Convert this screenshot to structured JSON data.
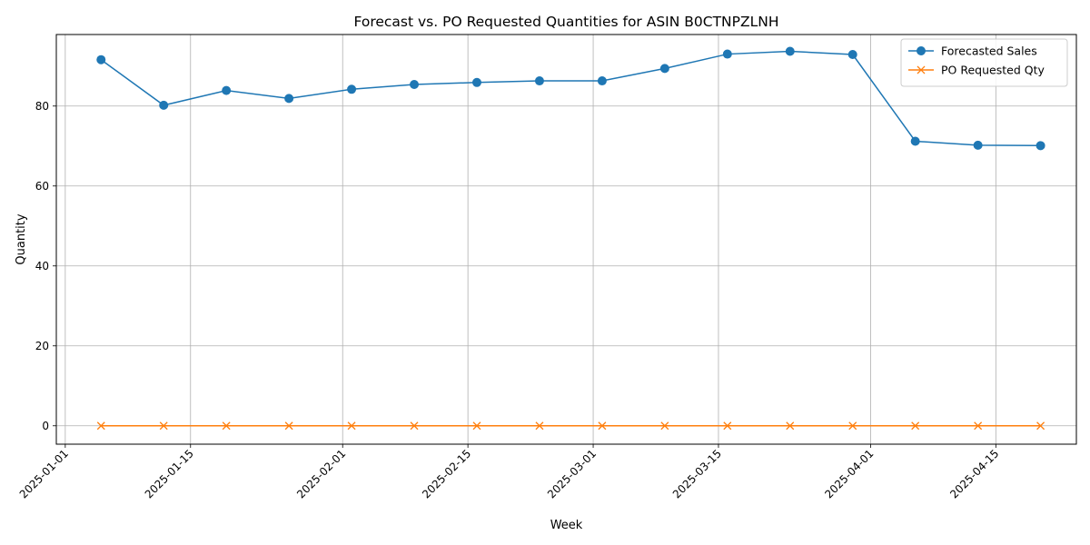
{
  "chart_data": {
    "type": "line",
    "title": "Forecast vs. PO Requested Quantities for ASIN B0CTNPZLNH",
    "xlabel": "Week",
    "ylabel": "Quantity",
    "x_axis_type": "date",
    "xlim": [
      "2024-12-31",
      "2025-04-24"
    ],
    "ylim": [
      -4.6,
      97.9
    ],
    "x_ticks": [
      "2025-01-01",
      "2025-01-15",
      "2025-02-01",
      "2025-02-15",
      "2025-03-01",
      "2025-03-15",
      "2025-04-01",
      "2025-04-15"
    ],
    "y_ticks": [
      0,
      20,
      40,
      60,
      80
    ],
    "grid": true,
    "legend_position": "top-right",
    "x": [
      "2025-01-05",
      "2025-01-12",
      "2025-01-19",
      "2025-01-26",
      "2025-02-02",
      "2025-02-09",
      "2025-02-16",
      "2025-02-23",
      "2025-03-02",
      "2025-03-09",
      "2025-03-16",
      "2025-03-23",
      "2025-03-30",
      "2025-04-06",
      "2025-04-13",
      "2025-04-20"
    ],
    "series": [
      {
        "name": "Forecasted Sales",
        "color": "#1f77b4",
        "marker": "circle",
        "values": [
          91.6,
          80.2,
          83.9,
          81.9,
          84.2,
          85.4,
          85.9,
          86.3,
          86.3,
          89.4,
          93.0,
          93.7,
          92.9,
          71.2,
          70.2,
          70.1
        ]
      },
      {
        "name": "PO Requested Qty",
        "color": "#ff7f0e",
        "marker": "x",
        "values": [
          0,
          0,
          0,
          0,
          0,
          0,
          0,
          0,
          0,
          0,
          0,
          0,
          0,
          0,
          0,
          0
        ]
      }
    ]
  }
}
